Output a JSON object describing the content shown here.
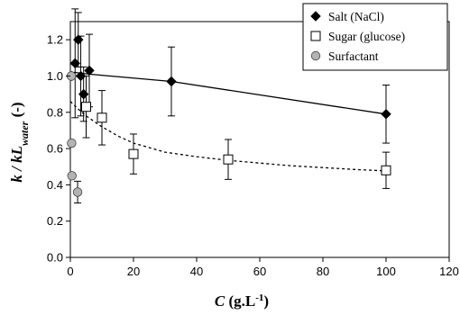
{
  "chart_data": {
    "type": "scatter",
    "xlabel": {
      "main": "C",
      "unit_open": " (g.L",
      "unit_exp": "-1",
      "unit_close": ")"
    },
    "ylabel": {
      "main": "k / kL",
      "sub": "water",
      "suffix": " (-)"
    },
    "xlim": [
      0,
      120
    ],
    "ylim": [
      0,
      1.3
    ],
    "xticks": [
      "0",
      "20",
      "40",
      "60",
      "80",
      "100",
      "120"
    ],
    "yticks": [
      "0.0",
      "0.2",
      "0.4",
      "0.6",
      "0.8",
      "1.0",
      "1.2"
    ],
    "legend_position": "top-right",
    "series": [
      {
        "name": "Salt (NaCl)",
        "marker": "diamond",
        "color": "#000000",
        "trend": "solid",
        "points": [
          {
            "x": 0.5,
            "y": 1.0,
            "err": 0
          },
          {
            "x": 1.5,
            "y": 1.07,
            "err": 0.3
          },
          {
            "x": 2.5,
            "y": 1.2,
            "err": 0.15
          },
          {
            "x": 3.3,
            "y": 1.0,
            "err": 0.22
          },
          {
            "x": 4.2,
            "y": 0.9,
            "err": 0.15
          },
          {
            "x": 6.0,
            "y": 1.03,
            "err": 0.2
          },
          {
            "x": 32.0,
            "y": 0.97,
            "err": 0.19
          },
          {
            "x": 100.0,
            "y": 0.79,
            "err": 0.16
          }
        ],
        "trend_points": [
          [
            1,
            1.02
          ],
          [
            6,
            1.01
          ],
          [
            32,
            0.97
          ],
          [
            100,
            0.79
          ]
        ]
      },
      {
        "name": "Sugar (glucose)",
        "marker": "square",
        "color": "#000000",
        "trend": "dotted",
        "points": [
          {
            "x": 5.0,
            "y": 0.83,
            "err": 0.17
          },
          {
            "x": 10.0,
            "y": 0.77,
            "err": 0.15
          },
          {
            "x": 20.0,
            "y": 0.57,
            "err": 0.11
          },
          {
            "x": 50.0,
            "y": 0.54,
            "err": 0.11
          },
          {
            "x": 100.0,
            "y": 0.48,
            "err": 0.1
          }
        ],
        "trend_points": [
          [
            0,
            0.86
          ],
          [
            3,
            0.81
          ],
          [
            5,
            0.78
          ],
          [
            10,
            0.72
          ],
          [
            15,
            0.67
          ],
          [
            20,
            0.63
          ],
          [
            30,
            0.58
          ],
          [
            40,
            0.555
          ],
          [
            50,
            0.535
          ],
          [
            60,
            0.52
          ],
          [
            70,
            0.505
          ],
          [
            80,
            0.495
          ],
          [
            90,
            0.485
          ],
          [
            100,
            0.477
          ]
        ]
      },
      {
        "name": "Surfactant",
        "marker": "circle",
        "color": "#b3b3b3",
        "trend": "none",
        "points": [
          {
            "x": 0.3,
            "y": 1.0,
            "err": 0
          },
          {
            "x": 0.4,
            "y": 0.63,
            "err": 0
          },
          {
            "x": 0.5,
            "y": 0.45,
            "err": 0
          },
          {
            "x": 2.3,
            "y": 0.36,
            "err": 0.06
          }
        ]
      }
    ]
  }
}
